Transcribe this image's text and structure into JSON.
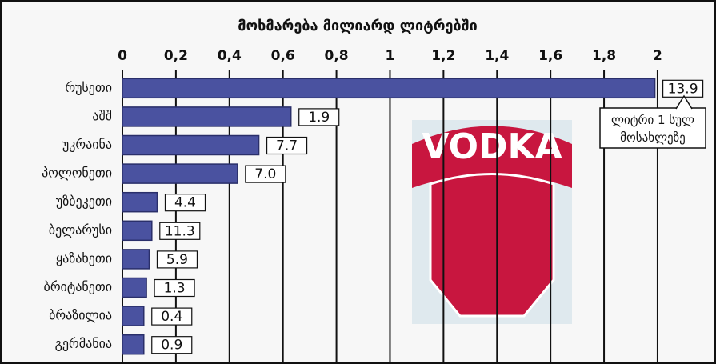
{
  "chart_data": {
    "type": "bar",
    "orientation": "horizontal",
    "title": "მოხმარება მილიარდ ლიტრებში",
    "categories": [
      "რუსეთი",
      "აშშ",
      "უკრაინა",
      "პოლონეთი",
      "უზბეკეთი",
      "ბელარუსი",
      "ყაზახეთი",
      "ბრიტანეთი",
      "ბრაზილია",
      "გერმანია"
    ],
    "values": [
      1.99,
      0.63,
      0.51,
      0.43,
      0.13,
      0.11,
      0.1,
      0.09,
      0.08,
      0.08
    ],
    "color": "#4a52a0",
    "per_capita": {
      "name": "ლიტრი 1 სულ მოსახლეზე",
      "values": [
        13.9,
        1.9,
        7.7,
        7.0,
        4.4,
        11.3,
        5.9,
        1.3,
        0.4,
        0.9
      ],
      "value_labels": [
        "13.9",
        "1.9",
        "7.7",
        "7.0",
        "4.4",
        "11.3",
        "5.9",
        "1.3",
        "0.4",
        "0.9"
      ]
    },
    "image_text": "VODKA",
    "xlim": [
      0,
      2.19
    ],
    "xticks": [
      0,
      {
        "value": 0.2,
        "label": "0,2"
      },
      {
        "value": 0.4,
        "label": "0,4"
      },
      {
        "value": 0.6,
        "label": "0,6"
      },
      {
        "value": 0.8,
        "label": "0,8"
      },
      1,
      {
        "value": 1.2,
        "label": "1,2"
      },
      {
        "value": 1.4,
        "label": "1,4"
      },
      {
        "value": 1.6,
        "label": "1,6"
      },
      {
        "value": 1.8,
        "label": "1,8"
      },
      2
    ],
    "grid": true
  }
}
